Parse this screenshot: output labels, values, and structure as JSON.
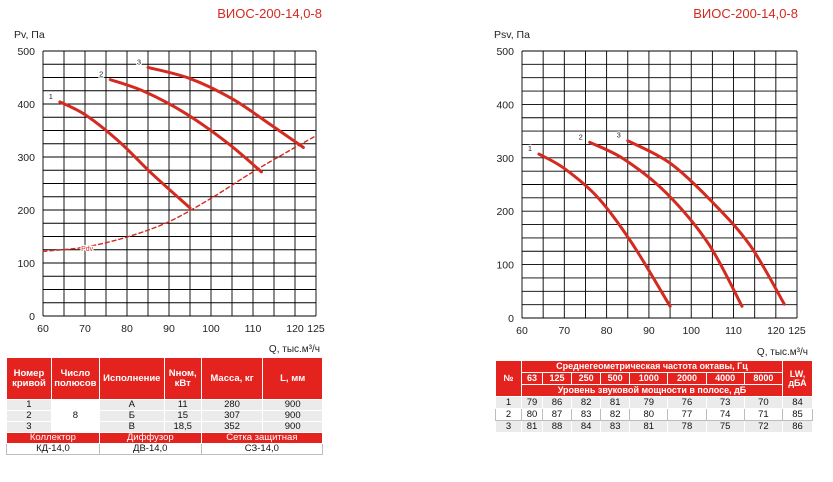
{
  "chart_data": [
    {
      "type": "line",
      "title": "ВИОС-200-14,0-8",
      "ylabel": "Pv, Па",
      "xlabel": "Q, тыс.м³/ч",
      "xlim": [
        60,
        125
      ],
      "ylim": [
        0,
        500
      ],
      "x_ticks": [
        "60",
        "70",
        "80",
        "90",
        "100",
        "110",
        "120",
        "125"
      ],
      "y_ticks": [
        "0",
        "100",
        "200",
        "300",
        "400",
        "500"
      ],
      "grid": true,
      "series": [
        {
          "name": "1",
          "x": [
            64,
            70,
            78,
            86,
            95
          ],
          "y": [
            404,
            380,
            330,
            268,
            204
          ]
        },
        {
          "name": "2",
          "x": [
            76,
            84,
            94,
            104,
            112
          ],
          "y": [
            446,
            424,
            382,
            326,
            272
          ]
        },
        {
          "name": "3",
          "x": [
            85,
            95,
            105,
            114,
            122
          ],
          "y": [
            469,
            448,
            410,
            362,
            318
          ]
        },
        {
          "name": "Pdv",
          "x": [
            60,
            70,
            80,
            90,
            100,
            110,
            120,
            125
          ],
          "y": [
            122,
            130,
            149,
            178,
            222,
            272,
            318,
            340
          ]
        }
      ]
    },
    {
      "type": "line",
      "title": "ВИОС-200-14,0-8",
      "ylabel": "Psv, Па",
      "xlabel": "Q, тыс.м³/ч",
      "xlim": [
        60,
        125
      ],
      "ylim": [
        0,
        500
      ],
      "x_ticks": [
        "60",
        "70",
        "80",
        "90",
        "100",
        "110",
        "120",
        "125"
      ],
      "y_ticks": [
        "0",
        "100",
        "200",
        "300",
        "400",
        "500"
      ],
      "grid": true,
      "series": [
        {
          "name": "1",
          "x": [
            64,
            70,
            78,
            86,
            95
          ],
          "y": [
            307,
            280,
            225,
            140,
            22
          ]
        },
        {
          "name": "2",
          "x": [
            76,
            84,
            94,
            104,
            112
          ],
          "y": [
            329,
            298,
            235,
            140,
            22
          ]
        },
        {
          "name": "3",
          "x": [
            85,
            95,
            105,
            114,
            122
          ],
          "y": [
            332,
            290,
            217,
            135,
            26
          ]
        }
      ]
    }
  ],
  "colors": {
    "curve": "#d42a1f",
    "header": "#e4231f",
    "grid": "#000000"
  },
  "table1": {
    "headers": [
      "Номер кривой",
      "Число полюсов",
      "Исполнение",
      "Nном, кВт",
      "Масса, кг",
      "L, мм"
    ],
    "rows": [
      [
        "1",
        "А",
        "11",
        "280",
        "900"
      ],
      [
        "2",
        "Б",
        "15",
        "307",
        "900"
      ],
      [
        "3",
        "В",
        "18,5",
        "352",
        "900"
      ]
    ],
    "poles": "8",
    "footer_labels": [
      "Коллектор",
      "Диффузор",
      "Сетка защитная"
    ],
    "footer_values": [
      "КД-14,0",
      "ДВ-14,0",
      "СЗ-14,0"
    ]
  },
  "table2": {
    "num_header": "№",
    "freq_title": "Среднегеометрическая частота октавы, Гц",
    "freqs": [
      "63",
      "125",
      "250",
      "500",
      "1000",
      "2000",
      "4000",
      "8000"
    ],
    "lw_header": "LW, дБА",
    "power_title": "Уровень звуковой мощности в полосе, дБ",
    "rows": [
      {
        "n": "1",
        "values": [
          "79",
          "86",
          "82",
          "81",
          "79",
          "76",
          "73",
          "70"
        ],
        "lw": "84"
      },
      {
        "n": "2",
        "values": [
          "80",
          "87",
          "83",
          "82",
          "80",
          "77",
          "74",
          "71"
        ],
        "lw": "85"
      },
      {
        "n": "3",
        "values": [
          "81",
          "88",
          "84",
          "83",
          "81",
          "78",
          "75",
          "72"
        ],
        "lw": "86"
      }
    ]
  }
}
